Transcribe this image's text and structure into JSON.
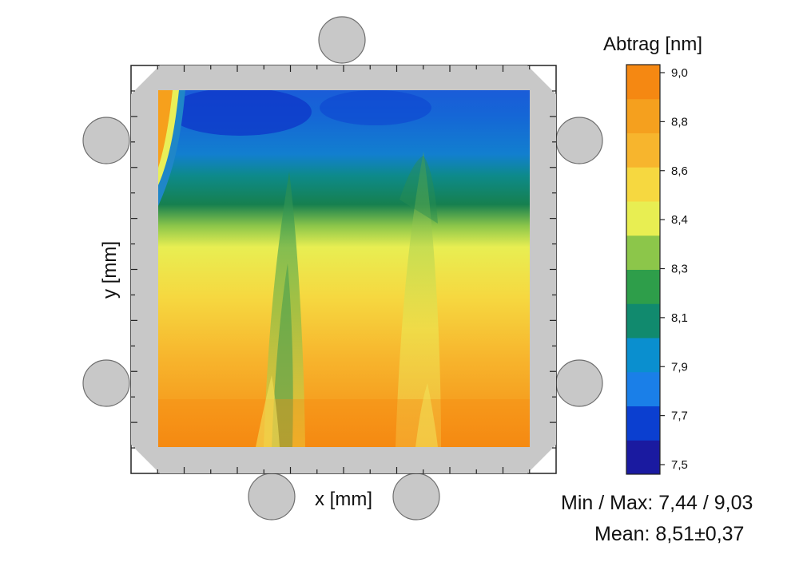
{
  "chart_data": {
    "type": "heatmap",
    "title": "",
    "xlabel": "x [mm]",
    "ylabel": "y [mm]",
    "colorbar": {
      "title": "Abtrag [nm]",
      "range": [
        7.44,
        9.03
      ],
      "ticks": [
        {
          "label": "9,0",
          "value": 9.0
        },
        {
          "label": "8,8",
          "value": 8.8
        },
        {
          "label": "8,6",
          "value": 8.6
        },
        {
          "label": "8,4",
          "value": 8.4
        },
        {
          "label": "8,3",
          "value": 8.3
        },
        {
          "label": "8,1",
          "value": 8.1
        },
        {
          "label": "7,9",
          "value": 7.9
        },
        {
          "label": "7,7",
          "value": 7.7
        },
        {
          "label": "7,5",
          "value": 7.5
        }
      ],
      "colors": [
        "#1a1aa0",
        "#0b3fd0",
        "#1a7fe8",
        "#0a8fcf",
        "#118a6e",
        "#2e9e4a",
        "#8cc64a",
        "#e8ee52",
        "#f6d840",
        "#f7b52d",
        "#f5a01e",
        "#f58812"
      ]
    },
    "grid": false,
    "description_regions": {
      "top_band_mean": 7.8,
      "middle_band_mean": 8.35,
      "bottom_band_mean": 8.85
    }
  },
  "stats": {
    "minmax_label": "Min / Max: 7,44 / 9,03",
    "mean_label": "Mean: 8,51±0,37"
  }
}
